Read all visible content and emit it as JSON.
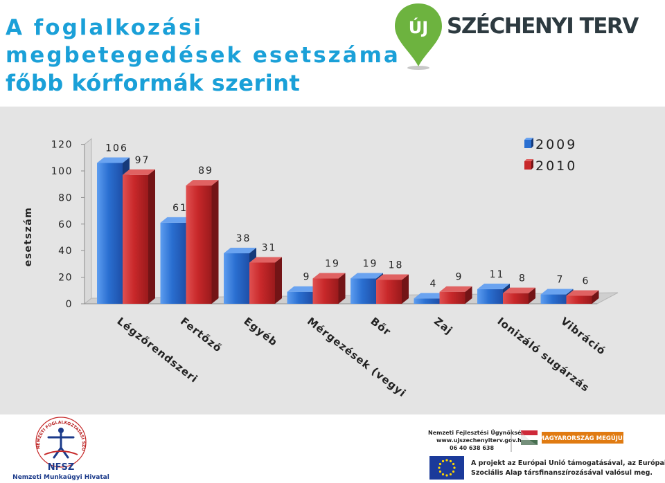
{
  "title": {
    "line1": "A foglalkozási",
    "line2": "megbetegedések esetszáma",
    "line3": "főbb kórformák szerint"
  },
  "brand": {
    "badge": "ÚJ",
    "name": "SZÉCHENYI TERV",
    "accent": "#6db33f"
  },
  "chart_data": {
    "type": "bar",
    "ylabel": "esetszám",
    "ylim": [
      0,
      120
    ],
    "yticks": [
      0,
      20,
      40,
      60,
      80,
      100,
      120
    ],
    "categories": [
      "Légzőrendszeri",
      "Fertőző",
      "Egyéb",
      "Mérgezések (vegyi",
      "Bőr",
      "Zaj",
      "Ionizáló sugárzás",
      "Vibráció"
    ],
    "series": [
      {
        "name": "2009",
        "color": "#2a6fd1",
        "values": [
          106,
          61,
          38,
          9,
          19,
          4,
          11,
          7
        ]
      },
      {
        "name": "2010",
        "color": "#c8282a",
        "values": [
          97,
          89,
          31,
          19,
          18,
          9,
          8,
          6
        ]
      }
    ],
    "legend_position": "top-right",
    "grid": false
  },
  "footer": {
    "nfsz_ring": "NEMZETI FOGLALKOZTATÁSI SZOLGÁLAT",
    "nfsz_abbr": "NFSZ",
    "nfsz_name": "Nemzeti Munkaügyi Hivatal",
    "nfu_name": "Nemzeti Fejlesztési Ügynökség",
    "nfu_web": "www.ujszechenyiterv.gov.hu",
    "nfu_phone": "06 40 638 638",
    "hu_slogan": "MAGYARORSZÁG MEGÚJUL",
    "eu_line1": "A projekt az Európai Unió támogatásával, az Európai",
    "eu_line2": "Szociális Alap társfinanszírozásával valósul meg."
  }
}
